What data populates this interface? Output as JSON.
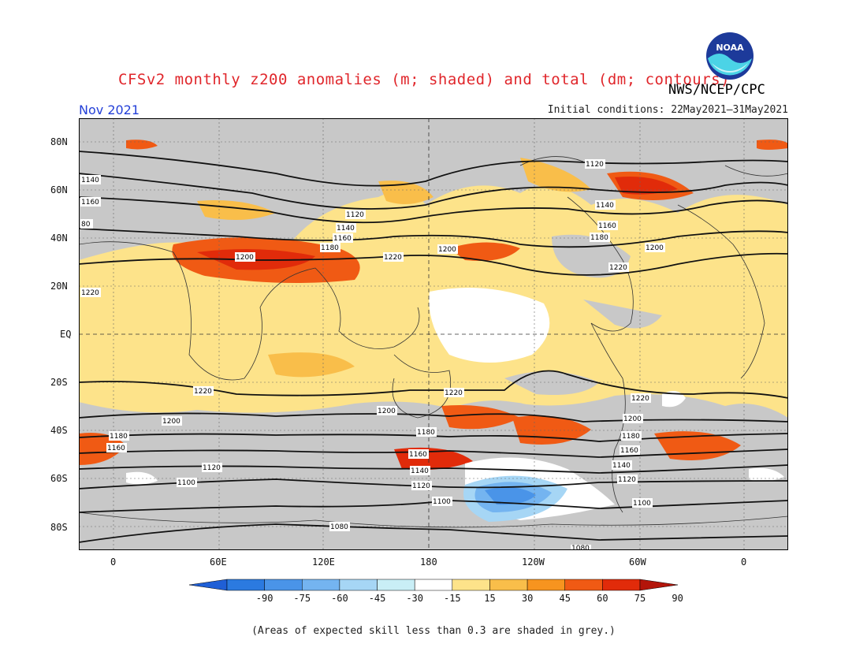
{
  "title": "CFSv2 monthly z200 anomalies (m; shaded) and total (dm; contours)",
  "org": "NWS/NCEP/CPC",
  "month": "Nov 2021",
  "initial_conditions": "Initial conditions: 22May2021–31May2021",
  "footnote": "(Areas of expected skill less than 0.3 are shaded in grey.)",
  "logo_text": "NOAA",
  "lat_labels": [
    "80N",
    "60N",
    "40N",
    "20N",
    "EQ",
    "20S",
    "40S",
    "60S",
    "80S"
  ],
  "lon_labels": [
    "0",
    "60E",
    "120E",
    "180",
    "120W",
    "60W",
    "0"
  ],
  "colorbar": {
    "labels": [
      "-90",
      "-75",
      "-60",
      "-45",
      "-30",
      "-15",
      "15",
      "30",
      "45",
      "60",
      "75",
      "90"
    ],
    "colors": [
      "#1f5fd6",
      "#2b7ae0",
      "#4a94e8",
      "#74b4f0",
      "#a6d6f5",
      "#c9eef6",
      "#ffffff",
      "#fde38a",
      "#f9be4a",
      "#f7941f",
      "#f05a14",
      "#e12b0a",
      "#b3150a"
    ]
  },
  "contour_labels": {
    "nh": [
      "1140",
      "1160",
      "1120",
      "1140",
      "1160",
      "1180",
      "1200",
      "1220",
      "1200",
      "1120",
      "1140",
      "1160",
      "1180",
      "1200",
      "1220",
      "1220",
      "80"
    ],
    "sh": [
      "1220",
      "1220",
      "1220",
      "1200",
      "1200",
      "1200",
      "1180",
      "1180",
      "1180",
      "1160",
      "1160",
      "1160",
      "1140",
      "1140",
      "1120",
      "1120",
      "1120",
      "1100",
      "1100",
      "1100",
      "1080",
      "1080"
    ]
  },
  "colors": {
    "title": "#e0262b",
    "month": "#2440d8",
    "grey_mask": "#c8c8c8",
    "land_outline": "#333333"
  }
}
